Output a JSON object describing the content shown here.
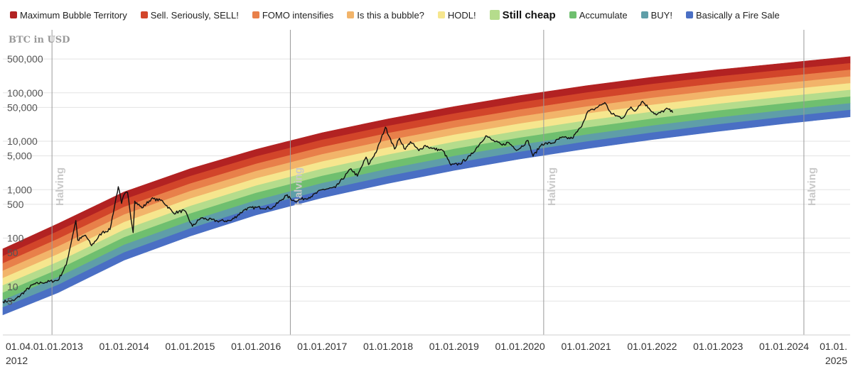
{
  "legend": {
    "items": [
      {
        "label": "Maximum Bubble Territory",
        "color": "#b22222"
      },
      {
        "label": "Sell. Seriously, SELL!",
        "color": "#d2452a"
      },
      {
        "label": "FOMO intensifies",
        "color": "#e8804a"
      },
      {
        "label": "Is this a bubble?",
        "color": "#f2b46a"
      },
      {
        "label": "HODL!",
        "color": "#f6e68e"
      },
      {
        "label": "Still cheap",
        "color": "#b5dc8c",
        "highlighted": true
      },
      {
        "label": "Accumulate",
        "color": "#6fbf6f"
      },
      {
        "label": "BUY!",
        "color": "#5f9ea8"
      },
      {
        "label": "Basically a Fire Sale",
        "color": "#4a6fc4"
      }
    ]
  },
  "chart_data": {
    "type": "area",
    "ylabel": "BTC in USD",
    "yscale": "log",
    "ylim": [
      1,
      2000000
    ],
    "xlim": [
      "2012-03-01",
      "2025-01-01"
    ],
    "grid": true,
    "y_ticks": [
      {
        "value": 500000,
        "label": "500,000"
      },
      {
        "value": 100000,
        "label": "100,000"
      },
      {
        "value": 50000,
        "label": "50,000"
      },
      {
        "value": 10000,
        "label": "10,000"
      },
      {
        "value": 5000,
        "label": "5,000"
      },
      {
        "value": 1000,
        "label": "1,000"
      },
      {
        "value": 500,
        "label": "500"
      },
      {
        "value": 100,
        "label": "100"
      },
      {
        "value": 50,
        "label": "50"
      },
      {
        "value": 10,
        "label": "10"
      },
      {
        "value": 5,
        "label": "5"
      }
    ],
    "x_ticks": [
      {
        "date": "2012-04-01",
        "label": "01.04.",
        "label2": "2012"
      },
      {
        "date": "2013-01-01",
        "label": "01.01.2013"
      },
      {
        "date": "2014-01-01",
        "label": "01.01.2014"
      },
      {
        "date": "2015-01-01",
        "label": "01.01.2015"
      },
      {
        "date": "2016-01-01",
        "label": "01.01.2016"
      },
      {
        "date": "2017-01-01",
        "label": "01.01.2017"
      },
      {
        "date": "2018-01-01",
        "label": "01.01.2018"
      },
      {
        "date": "2019-01-01",
        "label": "01.01.2019"
      },
      {
        "date": "2020-01-01",
        "label": "01.01.2020"
      },
      {
        "date": "2021-01-01",
        "label": "01.01.2021"
      },
      {
        "date": "2022-01-01",
        "label": "01.01.2022"
      },
      {
        "date": "2023-01-01",
        "label": "01.01.2023"
      },
      {
        "date": "2024-01-01",
        "label": "01.01.2024"
      },
      {
        "date": "2025-01-01",
        "label": "01.01.",
        "label2": "2025"
      }
    ],
    "halvings": [
      {
        "date": "2012-11-28",
        "label": "Halving"
      },
      {
        "date": "2016-07-09",
        "label": "Halving"
      },
      {
        "date": "2020-05-11",
        "label": "Halving"
      },
      {
        "date": "2024-04-20",
        "label": "Halving"
      }
    ],
    "bands": {
      "names": [
        "Maximum Bubble Territory",
        "Sell. Seriously, SELL!",
        "FOMO intensifies",
        "Is this a bubble?",
        "HODL!",
        "Still cheap",
        "Accumulate",
        "BUY!",
        "Basically a Fire Sale"
      ],
      "colors": [
        "#b22222",
        "#d2452a",
        "#e8804a",
        "#f2b46a",
        "#f6e68e",
        "#b5dc8c",
        "#6fbf6f",
        "#5f9ea8",
        "#4a6fc4"
      ],
      "bottom_boundary": [
        {
          "date": "2012-03-01",
          "value": 2.6
        },
        {
          "date": "2013-01-01",
          "value": 7.5
        },
        {
          "date": "2014-01-01",
          "value": 35
        },
        {
          "date": "2015-01-01",
          "value": 110
        },
        {
          "date": "2016-01-01",
          "value": 300
        },
        {
          "date": "2017-01-01",
          "value": 680
        },
        {
          "date": "2018-01-01",
          "value": 1350
        },
        {
          "date": "2019-01-01",
          "value": 2500
        },
        {
          "date": "2020-01-01",
          "value": 4300
        },
        {
          "date": "2021-01-01",
          "value": 7000
        },
        {
          "date": "2022-01-01",
          "value": 10800
        },
        {
          "date": "2023-01-01",
          "value": 16000
        },
        {
          "date": "2024-01-01",
          "value": 23000
        },
        {
          "date": "2025-01-01",
          "value": 32000
        }
      ],
      "top_boundary": [
        {
          "date": "2012-03-01",
          "value": 60
        },
        {
          "date": "2013-01-01",
          "value": 200
        },
        {
          "date": "2014-01-01",
          "value": 900
        },
        {
          "date": "2015-01-01",
          "value": 2700
        },
        {
          "date": "2016-01-01",
          "value": 6800
        },
        {
          "date": "2017-01-01",
          "value": 15000
        },
        {
          "date": "2018-01-01",
          "value": 29000
        },
        {
          "date": "2019-01-01",
          "value": 52000
        },
        {
          "date": "2020-01-01",
          "value": 88000
        },
        {
          "date": "2021-01-01",
          "value": 140000
        },
        {
          "date": "2022-01-01",
          "value": 210000
        },
        {
          "date": "2023-01-01",
          "value": 300000
        },
        {
          "date": "2024-01-01",
          "value": 410000
        },
        {
          "date": "2025-01-01",
          "value": 560000
        }
      ]
    },
    "series": [
      {
        "price": [
          {
            "date": "2012-03-01",
            "value": 4.9
          },
          {
            "date": "2012-05-01",
            "value": 5.1
          },
          {
            "date": "2012-08-15",
            "value": 11
          },
          {
            "date": "2012-10-01",
            "value": 12
          },
          {
            "date": "2013-01-01",
            "value": 13.5
          },
          {
            "date": "2013-02-15",
            "value": 28
          },
          {
            "date": "2013-04-09",
            "value": 230
          },
          {
            "date": "2013-04-20",
            "value": 90
          },
          {
            "date": "2013-06-01",
            "value": 115
          },
          {
            "date": "2013-07-05",
            "value": 70
          },
          {
            "date": "2013-09-01",
            "value": 130
          },
          {
            "date": "2013-10-15",
            "value": 150
          },
          {
            "date": "2013-11-15",
            "value": 600
          },
          {
            "date": "2013-11-30",
            "value": 1150
          },
          {
            "date": "2013-12-18",
            "value": 520
          },
          {
            "date": "2013-12-31",
            "value": 780
          },
          {
            "date": "2014-01-20",
            "value": 880
          },
          {
            "date": "2014-02-20",
            "value": 130
          },
          {
            "date": "2014-03-01",
            "value": 580
          },
          {
            "date": "2014-04-10",
            "value": 420
          },
          {
            "date": "2014-06-01",
            "value": 650
          },
          {
            "date": "2014-08-01",
            "value": 590
          },
          {
            "date": "2014-10-01",
            "value": 330
          },
          {
            "date": "2014-12-01",
            "value": 370
          },
          {
            "date": "2015-01-14",
            "value": 175
          },
          {
            "date": "2015-03-01",
            "value": 260
          },
          {
            "date": "2015-06-01",
            "value": 225
          },
          {
            "date": "2015-08-15",
            "value": 230
          },
          {
            "date": "2015-11-04",
            "value": 400
          },
          {
            "date": "2016-01-01",
            "value": 430
          },
          {
            "date": "2016-04-01",
            "value": 420
          },
          {
            "date": "2016-06-16",
            "value": 760
          },
          {
            "date": "2016-08-01",
            "value": 580
          },
          {
            "date": "2016-11-01",
            "value": 720
          },
          {
            "date": "2017-01-01",
            "value": 1000
          },
          {
            "date": "2017-03-15",
            "value": 1100
          },
          {
            "date": "2017-06-10",
            "value": 2700
          },
          {
            "date": "2017-07-15",
            "value": 1900
          },
          {
            "date": "2017-09-01",
            "value": 4700
          },
          {
            "date": "2017-09-15",
            "value": 3300
          },
          {
            "date": "2017-11-01",
            "value": 6600
          },
          {
            "date": "2017-12-17",
            "value": 19500
          },
          {
            "date": "2018-01-15",
            "value": 11000
          },
          {
            "date": "2018-02-06",
            "value": 6900
          },
          {
            "date": "2018-03-05",
            "value": 11500
          },
          {
            "date": "2018-04-06",
            "value": 6800
          },
          {
            "date": "2018-05-05",
            "value": 9800
          },
          {
            "date": "2018-06-20",
            "value": 6400
          },
          {
            "date": "2018-07-25",
            "value": 8200
          },
          {
            "date": "2018-09-01",
            "value": 7100
          },
          {
            "date": "2018-11-01",
            "value": 6400
          },
          {
            "date": "2018-12-15",
            "value": 3200
          },
          {
            "date": "2019-02-01",
            "value": 3400
          },
          {
            "date": "2019-04-01",
            "value": 5000
          },
          {
            "date": "2019-06-26",
            "value": 13000
          },
          {
            "date": "2019-08-01",
            "value": 10500
          },
          {
            "date": "2019-09-25",
            "value": 8300
          },
          {
            "date": "2019-10-26",
            "value": 9500
          },
          {
            "date": "2019-12-18",
            "value": 6600
          },
          {
            "date": "2020-02-15",
            "value": 10300
          },
          {
            "date": "2020-03-13",
            "value": 4900
          },
          {
            "date": "2020-05-01",
            "value": 8800
          },
          {
            "date": "2020-07-01",
            "value": 9200
          },
          {
            "date": "2020-08-15",
            "value": 11800
          },
          {
            "date": "2020-10-15",
            "value": 11500
          },
          {
            "date": "2020-12-01",
            "value": 19000
          },
          {
            "date": "2021-01-08",
            "value": 40000
          },
          {
            "date": "2021-02-10",
            "value": 45000
          },
          {
            "date": "2021-04-14",
            "value": 63000
          },
          {
            "date": "2021-05-20",
            "value": 37000
          },
          {
            "date": "2021-07-20",
            "value": 30000
          },
          {
            "date": "2021-09-06",
            "value": 51000
          },
          {
            "date": "2021-09-25",
            "value": 42000
          },
          {
            "date": "2021-11-09",
            "value": 67000
          },
          {
            "date": "2021-12-15",
            "value": 48000
          },
          {
            "date": "2022-01-24",
            "value": 35000
          },
          {
            "date": "2022-03-28",
            "value": 47000
          },
          {
            "date": "2022-04-25",
            "value": 39000
          }
        ]
      }
    ]
  }
}
